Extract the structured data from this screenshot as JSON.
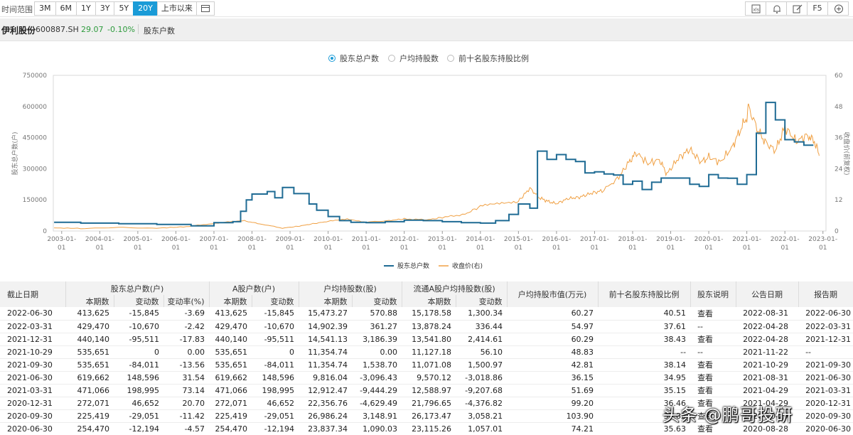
{
  "toolbar": {
    "range_label": "时间范围",
    "ranges": [
      "3M",
      "6M",
      "1Y",
      "3Y",
      "5Y",
      "20Y",
      "上市以来"
    ],
    "active_range": "20Y",
    "right_tools": [
      "xls-icon",
      "bell-icon",
      "edit-icon",
      "F5",
      "plus-circle-icon"
    ],
    "f5_label": "F5"
  },
  "stock": {
    "name": "伊利股份",
    "code": "600887.SH",
    "price": "29.07",
    "change": "-0.10%",
    "section": "股东户数"
  },
  "metric_tabs": [
    {
      "label": "股东总户数",
      "selected": true
    },
    {
      "label": "户均持股数",
      "selected": false
    },
    {
      "label": "前十名股东持股比例",
      "selected": false
    }
  ],
  "chart_data": {
    "type": "line",
    "left_axis": {
      "label": "股东总户数(户)",
      "ticks": [
        "0",
        "150000",
        "300000",
        "450000",
        "600000",
        "750000"
      ],
      "range": [
        0,
        750000
      ]
    },
    "right_axis": {
      "label": "收盘价(前复权)",
      "ticks": [
        "0",
        "12",
        "24",
        "36",
        "48",
        "60"
      ],
      "range": [
        0,
        60
      ]
    },
    "x_ticks": [
      "2003-01-01",
      "2004-01-01",
      "2005-01-01",
      "2006-01-01",
      "2007-01-01",
      "2008-01-01",
      "2009-01-01",
      "2010-01-01",
      "2011-01-01",
      "2012-01-01",
      "2013-01-01",
      "2014-01-01",
      "2015-01-01",
      "2016-01-01",
      "2017-01-01",
      "2018-01-01",
      "2019-01-01",
      "2020-01-01",
      "2021-01-01",
      "2022-01-01",
      "2023-01-01"
    ],
    "legend": [
      "股东总户数",
      "收盘价(右)"
    ],
    "colors": {
      "holders": "#1f6b94",
      "price": "#f0a043"
    },
    "holders_series": [
      [
        2002.8,
        42000
      ],
      [
        2003.5,
        38000
      ],
      [
        2004.5,
        35000
      ],
      [
        2005.5,
        32000
      ],
      [
        2006.4,
        25000
      ],
      [
        2007.0,
        40000
      ],
      [
        2007.5,
        45000
      ],
      [
        2007.7,
        95000
      ],
      [
        2007.85,
        150000
      ],
      [
        2008.0,
        178000
      ],
      [
        2008.4,
        190000
      ],
      [
        2008.6,
        160000
      ],
      [
        2008.8,
        210000
      ],
      [
        2009.1,
        180000
      ],
      [
        2009.5,
        130000
      ],
      [
        2009.7,
        100000
      ],
      [
        2010.0,
        70000
      ],
      [
        2010.3,
        50000
      ],
      [
        2010.6,
        42000
      ],
      [
        2011.0,
        40000
      ],
      [
        2011.5,
        45000
      ],
      [
        2012.0,
        52000
      ],
      [
        2012.5,
        50000
      ],
      [
        2013.0,
        45000
      ],
      [
        2013.5,
        40000
      ],
      [
        2014.0,
        38000
      ],
      [
        2014.4,
        50000
      ],
      [
        2014.75,
        80000
      ],
      [
        2015.0,
        130000
      ],
      [
        2015.3,
        110000
      ],
      [
        2015.5,
        385000
      ],
      [
        2015.75,
        345000
      ],
      [
        2016.0,
        368000
      ],
      [
        2016.25,
        345000
      ],
      [
        2016.5,
        335000
      ],
      [
        2016.75,
        280000
      ],
      [
        2017.0,
        285000
      ],
      [
        2017.25,
        275000
      ],
      [
        2017.5,
        270000
      ],
      [
        2017.75,
        225000
      ],
      [
        2018.0,
        240000
      ],
      [
        2018.25,
        200000
      ],
      [
        2018.5,
        235000
      ],
      [
        2018.75,
        255000
      ],
      [
        2019.0,
        255000
      ],
      [
        2019.25,
        255000
      ],
      [
        2019.5,
        225000
      ],
      [
        2019.75,
        215000
      ],
      [
        2020.0,
        272000
      ],
      [
        2020.25,
        255000
      ],
      [
        2020.5,
        254470
      ],
      [
        2020.75,
        225419
      ],
      [
        2021.0,
        272071
      ],
      [
        2021.25,
        471066
      ],
      [
        2021.5,
        619662
      ],
      [
        2021.75,
        535651
      ],
      [
        2022.0,
        440140
      ],
      [
        2022.25,
        429470
      ],
      [
        2022.5,
        413625
      ],
      [
        2022.75,
        413625
      ]
    ],
    "price_series": [
      [
        2002.8,
        1.2
      ],
      [
        2003.5,
        1.0
      ],
      [
        2004.5,
        1.3
      ],
      [
        2005.5,
        1.1
      ],
      [
        2006.2,
        1.6
      ],
      [
        2006.8,
        2.6
      ],
      [
        2007.3,
        3.5
      ],
      [
        2007.8,
        3.9
      ],
      [
        2008.2,
        2.8
      ],
      [
        2008.8,
        1.1
      ],
      [
        2009.2,
        1.8
      ],
      [
        2009.6,
        2.8
      ],
      [
        2010.0,
        3.7
      ],
      [
        2010.5,
        4.5
      ],
      [
        2011.0,
        3.4
      ],
      [
        2011.6,
        4.0
      ],
      [
        2012.0,
        4.7
      ],
      [
        2012.6,
        4.3
      ],
      [
        2013.0,
        5.2
      ],
      [
        2013.6,
        6.5
      ],
      [
        2014.0,
        9.5
      ],
      [
        2014.5,
        10.5
      ],
      [
        2015.0,
        11.5
      ],
      [
        2015.3,
        16.5
      ],
      [
        2015.55,
        12.8
      ],
      [
        2015.8,
        11.3
      ],
      [
        2016.0,
        10.5
      ],
      [
        2016.3,
        12.5
      ],
      [
        2016.6,
        13.0
      ],
      [
        2016.9,
        14.5
      ],
      [
        2017.2,
        15.5
      ],
      [
        2017.6,
        20.0
      ],
      [
        2017.9,
        26.5
      ],
      [
        2018.1,
        30.2
      ],
      [
        2018.4,
        26.0
      ],
      [
        2018.7,
        27.5
      ],
      [
        2018.9,
        22.0
      ],
      [
        2019.2,
        28.0
      ],
      [
        2019.5,
        31.5
      ],
      [
        2019.8,
        26.5
      ],
      [
        2020.0,
        28.5
      ],
      [
        2020.3,
        26.5
      ],
      [
        2020.6,
        32.0
      ],
      [
        2020.8,
        38.0
      ],
      [
        2021.0,
        44.0
      ],
      [
        2021.05,
        47.5
      ],
      [
        2021.3,
        38.5
      ],
      [
        2021.5,
        34.0
      ],
      [
        2021.75,
        31.0
      ],
      [
        2022.0,
        40.0
      ],
      [
        2022.3,
        34.5
      ],
      [
        2022.6,
        37.0
      ],
      [
        2022.8,
        34.0
      ],
      [
        2022.9,
        29.0
      ]
    ]
  },
  "table": {
    "group_headers": [
      "截止日期",
      "股东总户数(户)",
      "A股户数(户)",
      "户均持股数(股)",
      "流通A股户均持股数(股)",
      "户均持股市值(万元)",
      "前十名股东持股比例",
      "股东说明",
      "公告日期",
      "报告期"
    ],
    "sub_headers": [
      "本期数",
      "变动数",
      "变动率(%)",
      "本期数",
      "变动数",
      "本期数",
      "变动数",
      "本期数",
      "变动数"
    ],
    "rows": [
      [
        "2022-06-30",
        "413,625",
        "-15,845",
        "-3.69",
        "413,625",
        "-15,845",
        "15,473.27",
        "570.88",
        "15,178.58",
        "1,300.34",
        "60.27",
        "40.51",
        "查看",
        "2022-08-31",
        "2022-06-30"
      ],
      [
        "2022-03-31",
        "429,470",
        "-10,670",
        "-2.42",
        "429,470",
        "-10,670",
        "14,902.39",
        "361.27",
        "13,878.24",
        "336.44",
        "54.97",
        "37.61",
        "--",
        "2022-04-28",
        "2022-03-31"
      ],
      [
        "2021-12-31",
        "440,140",
        "-95,511",
        "-17.83",
        "440,140",
        "-95,511",
        "14,541.13",
        "3,186.39",
        "13,541.80",
        "2,414.61",
        "60.29",
        "38.43",
        "查看",
        "2022-04-28",
        "2021-12-31"
      ],
      [
        "2021-10-29",
        "535,651",
        "0",
        "0.00",
        "535,651",
        "0",
        "11,354.74",
        "0.00",
        "11,127.18",
        "56.10",
        "48.83",
        "--",
        "--",
        "2021-11-22",
        "--"
      ],
      [
        "2021-09-30",
        "535,651",
        "-84,011",
        "-13.56",
        "535,651",
        "-84,011",
        "11,354.74",
        "1,538.70",
        "11,071.08",
        "1,500.97",
        "42.81",
        "38.14",
        "查看",
        "2021-10-29",
        "2021-09-30"
      ],
      [
        "2021-06-30",
        "619,662",
        "148,596",
        "31.54",
        "619,662",
        "148,596",
        "9,816.04",
        "-3,096.43",
        "9,570.12",
        "-3,018.86",
        "36.15",
        "34.95",
        "查看",
        "2021-08-31",
        "2021-06-30"
      ],
      [
        "2021-03-31",
        "471,066",
        "198,995",
        "73.14",
        "471,066",
        "198,995",
        "12,912.47",
        "-9,444.29",
        "12,588.97",
        "-9,207.68",
        "51.69",
        "35.15",
        "查看",
        "2021-04-29",
        "2021-03-31"
      ],
      [
        "2020-12-31",
        "272,071",
        "46,652",
        "20.70",
        "272,071",
        "46,652",
        "22,356.76",
        "-4,629.49",
        "21,796.65",
        "-4,376.82",
        "99.20",
        "36.46",
        "查看",
        "2021-04-29",
        "2020-12-31"
      ],
      [
        "2020-09-30",
        "225,419",
        "-29,051",
        "-11.42",
        "225,419",
        "-29,051",
        "26,986.24",
        "3,148.91",
        "26,173.47",
        "3,058.21",
        "103.90",
        "35.82",
        "查看",
        "2020-10-29",
        "2020-09-30"
      ],
      [
        "2020-06-30",
        "254,470",
        "-12,194",
        "-4.57",
        "254,470",
        "-12,194",
        "23,837.34",
        "1,090.03",
        "23,115.26",
        "1,057.01",
        "74.21",
        "35.63",
        "查看",
        "2020-08-28",
        "2020-06-30"
      ]
    ]
  },
  "watermark": "头条 @鹏哥投研"
}
